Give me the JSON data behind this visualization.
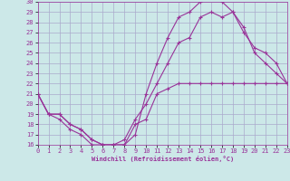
{
  "xlabel": "Windchill (Refroidissement éolien,°C)",
  "bg_color": "#cce8e8",
  "grid_color": "#aaaacc",
  "line_color": "#993399",
  "xlim": [
    0,
    23
  ],
  "ylim": [
    16,
    30
  ],
  "xticks": [
    0,
    1,
    2,
    3,
    4,
    5,
    6,
    7,
    8,
    9,
    10,
    11,
    12,
    13,
    14,
    15,
    16,
    17,
    18,
    19,
    20,
    21,
    22,
    23
  ],
  "yticks": [
    16,
    17,
    18,
    19,
    20,
    21,
    22,
    23,
    24,
    25,
    26,
    27,
    28,
    29,
    30
  ],
  "curve1_x": [
    0,
    1,
    2,
    3,
    4,
    5,
    6,
    7,
    8,
    9,
    10,
    11,
    12,
    13,
    14,
    15,
    16,
    17,
    18,
    19,
    20,
    21,
    22,
    23
  ],
  "curve1_y": [
    21,
    19,
    18.5,
    17.5,
    17,
    16,
    16,
    16,
    16,
    18,
    18.5,
    21,
    21.5,
    22,
    22,
    22,
    22,
    22,
    22,
    22,
    22,
    22,
    22,
    22
  ],
  "curve2_x": [
    0,
    1,
    2,
    3,
    4,
    5,
    6,
    7,
    8,
    9,
    10,
    11,
    12,
    13,
    14,
    15,
    16,
    17,
    18,
    19,
    20,
    21,
    22,
    23
  ],
  "curve2_y": [
    21,
    19,
    19,
    18,
    17.5,
    16.5,
    16,
    16,
    16.5,
    18.5,
    20,
    22,
    24,
    26,
    26.5,
    28.5,
    29,
    28.5,
    29,
    27,
    25.5,
    25,
    24,
    22
  ],
  "curve3_x": [
    0,
    1,
    2,
    3,
    4,
    5,
    6,
    7,
    8,
    9,
    10,
    11,
    12,
    13,
    14,
    15,
    16,
    17,
    18,
    19,
    20,
    21,
    22,
    23
  ],
  "curve3_y": [
    21,
    19,
    19,
    18,
    17.5,
    16.5,
    16,
    16,
    16,
    17,
    21,
    24,
    26.5,
    28.5,
    29,
    30,
    30.5,
    30,
    29,
    27.5,
    25,
    24,
    23,
    22
  ],
  "label_fontsize": 5,
  "tick_fontsize": 5,
  "linewidth": 0.8,
  "markersize": 3
}
